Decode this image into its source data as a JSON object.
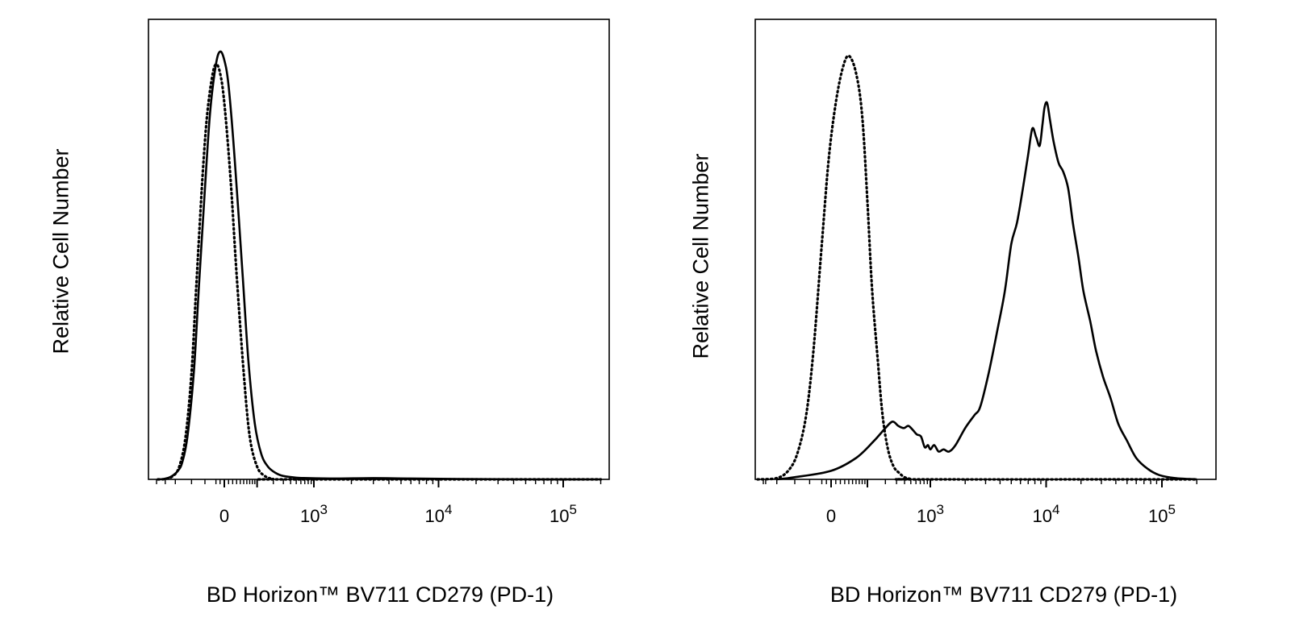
{
  "chart_data": [
    {
      "type": "line",
      "xlabel": "BD Horizon™ BV711  CD279 (PD-1)",
      "ylabel": "Relative Cell Number",
      "x_scale": "biexponential",
      "x_tick_labels": [
        {
          "value": 0,
          "text": "0"
        },
        {
          "value": 1000,
          "base": "10",
          "exp": "3"
        },
        {
          "value": 10000,
          "base": "10",
          "exp": "4"
        },
        {
          "value": 100000,
          "base": "10",
          "exp": "5"
        }
      ],
      "xlim": [
        -400,
        200000
      ],
      "ylim": [
        0,
        100
      ],
      "y_ticks_shown": false,
      "grid": false,
      "legend": "none",
      "series": [
        {
          "style": "solid",
          "points": [
            [
              -400,
              0
            ],
            [
              -320,
              0.1
            ],
            [
              -240,
              0.6
            ],
            [
              -180,
              2
            ],
            [
              -150,
              4
            ],
            [
              -120,
              10
            ],
            [
              -90,
              25
            ],
            [
              -70,
              45
            ],
            [
              -50,
              68
            ],
            [
              -35,
              86
            ],
            [
              -20,
              97
            ],
            [
              -10,
              100
            ],
            [
              0,
              98
            ],
            [
              10,
              92
            ],
            [
              25,
              75
            ],
            [
              45,
              50
            ],
            [
              65,
              28
            ],
            [
              90,
              13
            ],
            [
              120,
              6
            ],
            [
              160,
              3
            ],
            [
              220,
              1.5
            ],
            [
              300,
              0.8
            ],
            [
              500,
              0.4
            ],
            [
              800,
              0.3
            ],
            [
              1500,
              0.2
            ],
            [
              3000,
              0.3
            ],
            [
              6000,
              0.2
            ],
            [
              15000,
              0.1
            ],
            [
              50000,
              0
            ],
            [
              200000,
              0
            ]
          ]
        },
        {
          "style": "dotted",
          "points": [
            [
              -400,
              0
            ],
            [
              -300,
              0.1
            ],
            [
              -220,
              0.8
            ],
            [
              -170,
              3
            ],
            [
              -130,
              10
            ],
            [
              -100,
              25
            ],
            [
              -80,
              45
            ],
            [
              -60,
              68
            ],
            [
              -45,
              84
            ],
            [
              -30,
              94
            ],
            [
              -20,
              97
            ],
            [
              -10,
              95
            ],
            [
              0,
              88
            ],
            [
              15,
              70
            ],
            [
              30,
              48
            ],
            [
              50,
              25
            ],
            [
              70,
              10
            ],
            [
              100,
              3
            ],
            [
              140,
              0.8
            ],
            [
              200,
              0.1
            ],
            [
              300,
              0
            ],
            [
              200000,
              0
            ]
          ]
        }
      ]
    },
    {
      "type": "line",
      "xlabel": "BD Horizon™ BV711  CD279 (PD-1)",
      "ylabel": "Relative Cell Number",
      "x_scale": "biexponential",
      "x_tick_labels": [
        {
          "value": 0,
          "text": "0"
        },
        {
          "value": 1000,
          "base": "10",
          "exp": "3"
        },
        {
          "value": 10000,
          "base": "10",
          "exp": "4"
        },
        {
          "value": 100000,
          "base": "10",
          "exp": "5"
        }
      ],
      "xlim": [
        -400,
        200000
      ],
      "ylim": [
        0,
        100
      ],
      "y_ticks_shown": false,
      "grid": false,
      "legend": "none",
      "series": [
        {
          "style": "solid",
          "points": [
            [
              -200,
              0
            ],
            [
              -100,
              0.5
            ],
            [
              0,
              2
            ],
            [
              60,
              5
            ],
            [
              130,
              9
            ],
            [
              200,
              12
            ],
            [
              260,
              13.5
            ],
            [
              320,
              12.5
            ],
            [
              390,
              12
            ],
            [
              460,
              12.5
            ],
            [
              540,
              11.5
            ],
            [
              620,
              10.5
            ],
            [
              720,
              10
            ],
            [
              820,
              7.5
            ],
            [
              920,
              8
            ],
            [
              1000,
              7
            ],
            [
              1080,
              8
            ],
            [
              1180,
              6.5
            ],
            [
              1300,
              7
            ],
            [
              1450,
              6.5
            ],
            [
              1650,
              8
            ],
            [
              2000,
              12
            ],
            [
              2400,
              15
            ],
            [
              2700,
              17
            ],
            [
              3200,
              25
            ],
            [
              3800,
              35
            ],
            [
              4400,
              44
            ],
            [
              5000,
              55
            ],
            [
              5600,
              60
            ],
            [
              6300,
              68
            ],
            [
              7000,
              76
            ],
            [
              7600,
              82
            ],
            [
              8200,
              80
            ],
            [
              8800,
              78
            ],
            [
              9300,
              83
            ],
            [
              9700,
              87
            ],
            [
              10200,
              88
            ],
            [
              10800,
              84
            ],
            [
              11600,
              79
            ],
            [
              12800,
              74
            ],
            [
              14000,
              72
            ],
            [
              15500,
              68
            ],
            [
              17000,
              60
            ],
            [
              19000,
              52
            ],
            [
              21000,
              44
            ],
            [
              24000,
              37
            ],
            [
              27000,
              30
            ],
            [
              31000,
              24
            ],
            [
              36000,
              19
            ],
            [
              42000,
              13
            ],
            [
              50000,
              9
            ],
            [
              60000,
              5
            ],
            [
              75000,
              2.5
            ],
            [
              95000,
              1
            ],
            [
              130000,
              0.3
            ],
            [
              200000,
              0
            ]
          ]
        },
        {
          "style": "dotted",
          "points": [
            [
              -400,
              0
            ],
            [
              -200,
              0.3
            ],
            [
              -130,
              2
            ],
            [
              -90,
              6
            ],
            [
              -60,
              15
            ],
            [
              -40,
              30
            ],
            [
              -20,
              55
            ],
            [
              -5,
              75
            ],
            [
              10,
              88
            ],
            [
              25,
              96
            ],
            [
              40,
              99
            ],
            [
              60,
              95
            ],
            [
              80,
              85
            ],
            [
              100,
              65
            ],
            [
              120,
              45
            ],
            [
              150,
              28
            ],
            [
              180,
              15
            ],
            [
              220,
              7
            ],
            [
              270,
              3
            ],
            [
              330,
              1.5
            ],
            [
              400,
              0.5
            ],
            [
              500,
              0.1
            ],
            [
              650,
              0
            ],
            [
              200000,
              0
            ]
          ]
        }
      ]
    }
  ]
}
